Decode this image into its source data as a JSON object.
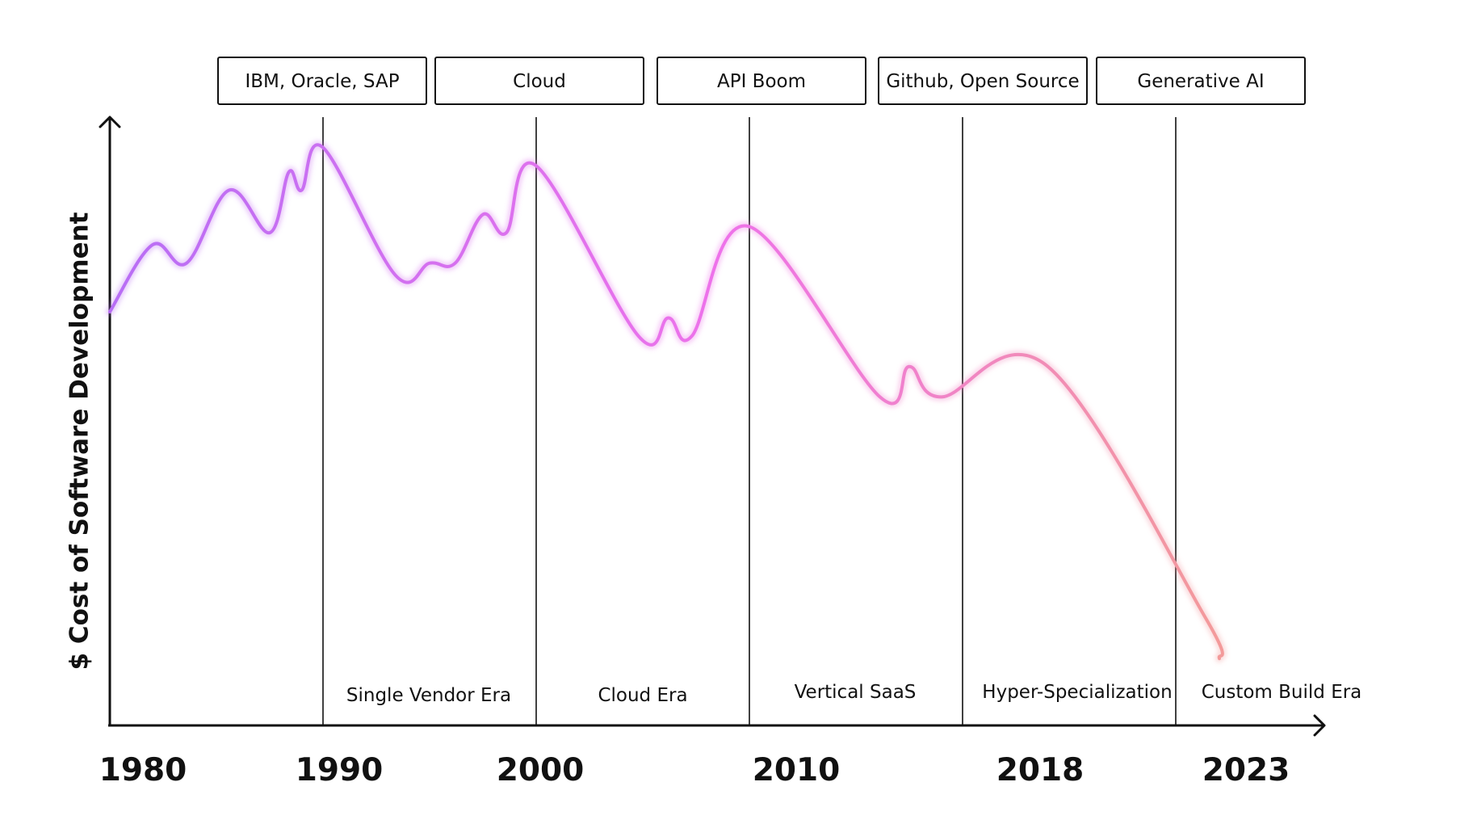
{
  "chart_data": {
    "type": "line",
    "title": "",
    "ylabel": "$ Cost of Software Development",
    "xlabel": "",
    "x_ticks": [
      "1980",
      "1990",
      "2000",
      "2010",
      "2018",
      "2023"
    ],
    "ylim": [
      0,
      100
    ],
    "grid": false,
    "legend": "none",
    "boundaries": [
      1990,
      2000,
      2010,
      2018,
      2023
    ],
    "era_boxes": [
      "IBM, Oracle, SAP",
      "Cloud",
      "API Boom",
      "Github, Open Source",
      "Generative AI"
    ],
    "era_labels": [
      "Single Vendor Era",
      "Cloud Era",
      "Vertical SaaS",
      "Hyper-Specialization",
      "Custom Build Era"
    ],
    "line_colors": [
      "#b86ef5",
      "#ee72ea",
      "#f39a9a"
    ],
    "series": [
      {
        "values": [
          [
            1980.0,
            68
          ],
          [
            1982.0,
            79
          ],
          [
            1983.6,
            76
          ],
          [
            1985.6,
            88
          ],
          [
            1987.5,
            81
          ],
          [
            1988.4,
            91
          ],
          [
            1989.0,
            88
          ],
          [
            1990.0,
            95
          ],
          [
            1993.4,
            74
          ],
          [
            1995.0,
            76
          ],
          [
            1996.2,
            76
          ],
          [
            1997.5,
            84
          ],
          [
            1998.6,
            81
          ],
          [
            2000.0,
            92
          ],
          [
            2004.8,
            64
          ],
          [
            2006.2,
            67
          ],
          [
            2007.3,
            64
          ],
          [
            2010.0,
            82
          ],
          [
            2014.9,
            54
          ],
          [
            2016.0,
            59
          ],
          [
            2017.2,
            54
          ],
          [
            2020.0,
            59
          ],
          [
            2027.6,
            18
          ],
          [
            2030.0,
            11
          ]
        ]
      }
    ]
  }
}
